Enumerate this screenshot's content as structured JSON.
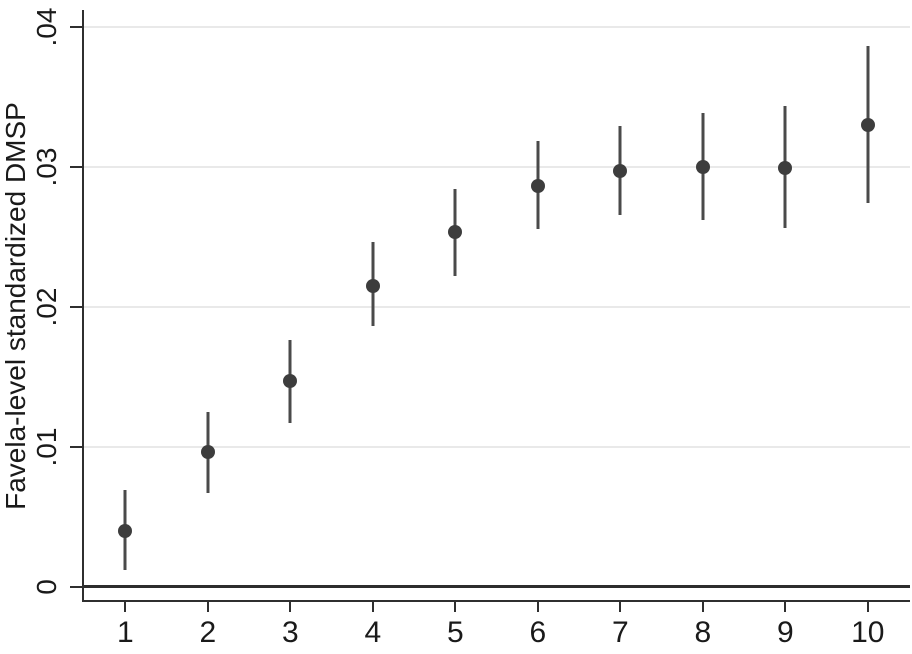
{
  "chart_data": {
    "type": "scatter",
    "subtype": "coefficient-plot-with-error-bars",
    "title": "",
    "xlabel": "",
    "ylabel": "Favela-level standardized DMSP",
    "x": [
      1,
      2,
      3,
      4,
      5,
      6,
      7,
      8,
      9,
      10
    ],
    "x_tick_labels": [
      "1",
      "2",
      "3",
      "4",
      "5",
      "6",
      "7",
      "8",
      "9",
      "10"
    ],
    "y_ticks": [
      0,
      0.01,
      0.02,
      0.03,
      0.04
    ],
    "y_tick_labels": [
      "0",
      ".01",
      ".02",
      ".03",
      ".04"
    ],
    "ylim": [
      -0.001,
      0.041
    ],
    "grid": "horizontal",
    "legend": "none",
    "reference_line_y": 0,
    "series": [
      {
        "values": [
          0.004,
          0.0096,
          0.0147,
          0.0215,
          0.0253,
          0.0286,
          0.0297,
          0.03,
          0.0299,
          0.033
        ],
        "ci_low": [
          0.0012,
          0.0067,
          0.0117,
          0.0186,
          0.0222,
          0.0255,
          0.0265,
          0.0262,
          0.0256,
          0.0274
        ],
        "ci_high": [
          0.0069,
          0.0125,
          0.0176,
          0.0246,
          0.0284,
          0.0318,
          0.0329,
          0.0338,
          0.0343,
          0.0386
        ]
      }
    ],
    "colors": {
      "marker": "#3d3d3d",
      "error_bar": "#4a4a4a",
      "gridline": "#e9e9e9",
      "axis": "#2f2f2f",
      "zero_line": "#2d2d2d",
      "text": "#1a1a1a",
      "background": "#ffffff"
    }
  }
}
